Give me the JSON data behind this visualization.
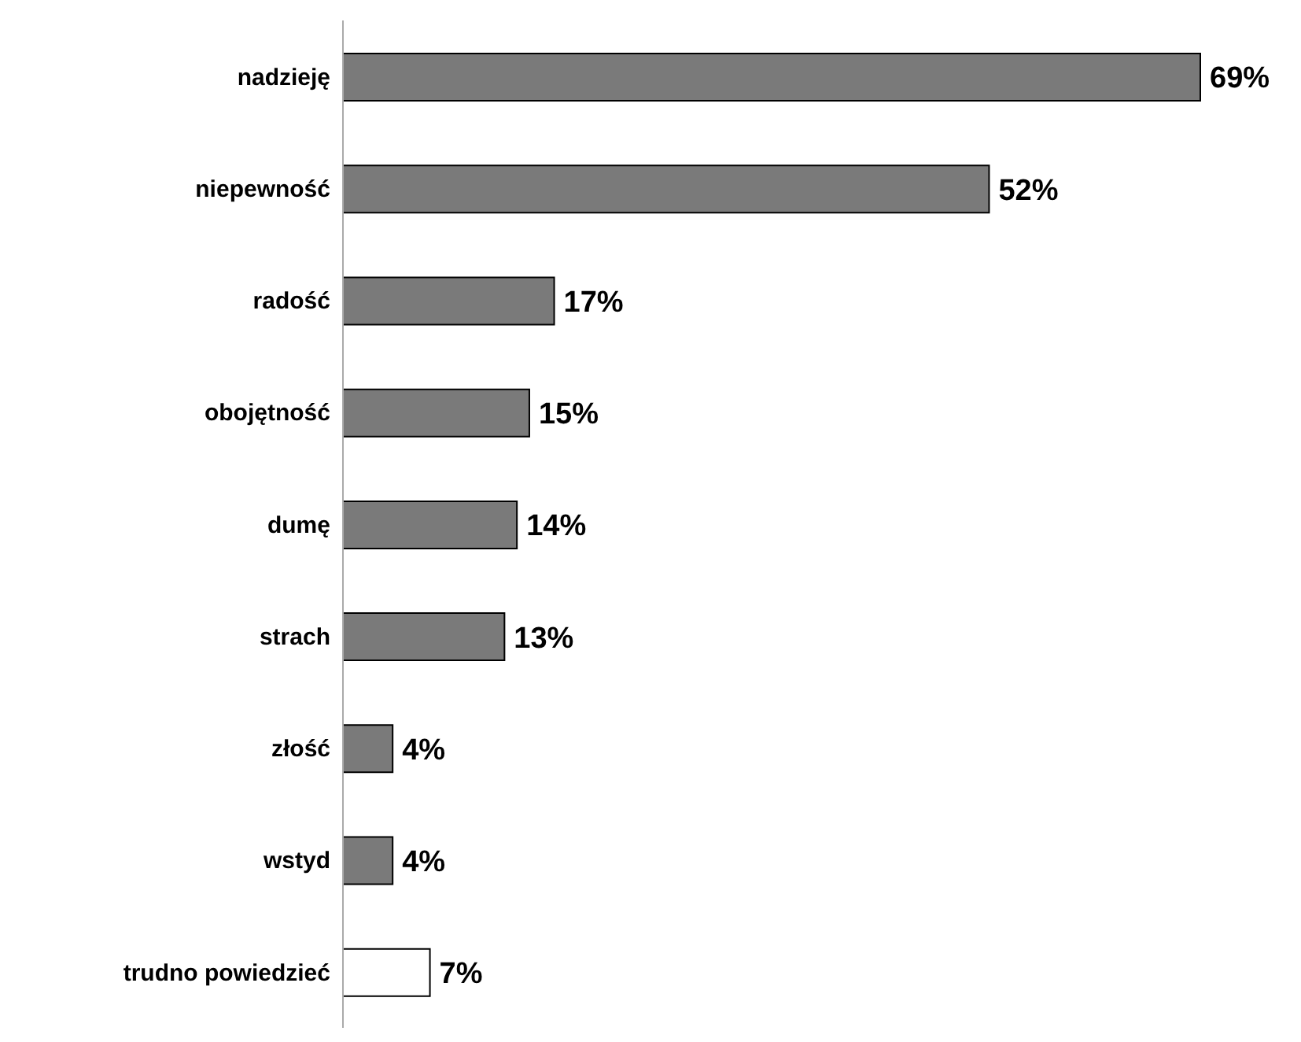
{
  "chart_data": {
    "type": "bar",
    "orientation": "horizontal",
    "categories": [
      "nadzieję",
      "niepewność",
      "radość",
      "obojętność",
      "dumę",
      "strach",
      "złość",
      "wstyd",
      "trudno powiedzieć"
    ],
    "values": [
      69,
      52,
      17,
      15,
      14,
      13,
      4,
      4,
      7
    ],
    "colors": [
      "#7a7a7a",
      "#7a7a7a",
      "#7a7a7a",
      "#7a7a7a",
      "#7a7a7a",
      "#7a7a7a",
      "#7a7a7a",
      "#7a7a7a",
      "#ffffff"
    ],
    "value_labels": [
      "69%",
      "52%",
      "17%",
      "15%",
      "14%",
      "13%",
      "4%",
      "4%",
      "7%"
    ],
    "grid": false,
    "legend": false
  }
}
